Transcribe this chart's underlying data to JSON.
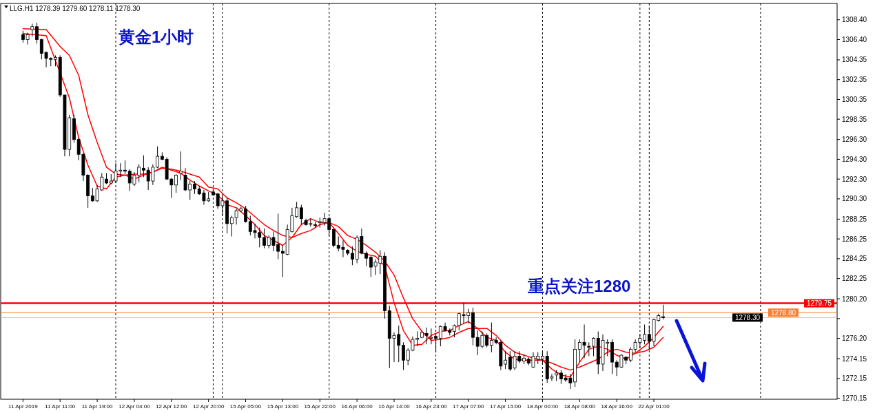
{
  "chart_data": {
    "type": "candlestick",
    "annotations": [
      "LLG.H1  1278.39 1279.60 1278.11 1278.30",
      "黄金1小时",
      "重点关注1280"
    ],
    "categories": [
      "11 Apr 2019",
      null,
      null,
      null,
      null,
      null,
      null,
      null,
      "11 Apr 11:00",
      null,
      null,
      null,
      null,
      null,
      null,
      null,
      "11 Apr 19:00",
      null,
      null,
      null,
      null,
      null,
      null,
      null,
      "12 Apr 04:00",
      null,
      null,
      null,
      null,
      null,
      null,
      null,
      "12 Apr 12:00",
      null,
      null,
      null,
      null,
      null,
      null,
      null,
      "12 Apr 20:00",
      null,
      null,
      null,
      null,
      null,
      null,
      null,
      "15 Apr 05:00",
      null,
      null,
      null,
      null,
      null,
      null,
      null,
      "15 Apr 13:00",
      null,
      null,
      null,
      null,
      null,
      null,
      null,
      "15 Apr 22:00",
      null,
      null,
      null,
      null,
      null,
      null,
      null,
      "16 Apr 06:00",
      null,
      null,
      null,
      null,
      null,
      null,
      null,
      "16 Apr 14:00",
      null,
      null,
      null,
      null,
      null,
      null,
      null,
      "16 Apr 23:00",
      null,
      null,
      null,
      null,
      null,
      null,
      null,
      "17 Apr 07:00",
      null,
      null,
      null,
      null,
      null,
      null,
      null,
      "17 Apr 15:00",
      null,
      null,
      null,
      null,
      null,
      null,
      null,
      "18 Apr 00:00",
      null,
      null,
      null,
      null,
      null,
      null,
      null,
      "18 Apr 08:00",
      null,
      null,
      null,
      null,
      null,
      null,
      null,
      "18 Apr 16:00",
      null,
      null,
      null,
      null,
      null,
      null,
      null,
      "22 Apr 01:00",
      null,
      null,
      null,
      null,
      null,
      null,
      null,
      null,
      null,
      null,
      null,
      null,
      null,
      null,
      null,
      null,
      null,
      null,
      null,
      null,
      null,
      null,
      null,
      null,
      null,
      null,
      null,
      null,
      null,
      null,
      null,
      null,
      null,
      null,
      null,
      null,
      null,
      null,
      null
    ],
    "ohlc": [
      [
        1306.9,
        1307.3,
        1306.1,
        1306.4
      ],
      [
        1306.4,
        1307.1,
        1305.9,
        1306.9
      ],
      [
        1307.4,
        1308.0,
        1306.7,
        1307.7
      ],
      [
        1307.7,
        1308.1,
        1306.0,
        1306.4
      ],
      [
        1306.4,
        1306.5,
        1304.4,
        1305.0
      ],
      [
        1305.1,
        1305.2,
        1303.6,
        1304.5
      ],
      [
        1304.5,
        1304.6,
        1303.7,
        1304.4
      ],
      [
        1304.4,
        1304.8,
        1303.7,
        1304.6
      ],
      [
        1304.6,
        1304.8,
        1300.6,
        1300.8
      ],
      [
        1300.8,
        1300.8,
        1294.6,
        1295.3
      ],
      [
        1295.3,
        1298.8,
        1294.6,
        1298.5
      ],
      [
        1298.4,
        1298.8,
        1296.0,
        1296.3
      ],
      [
        1296.3,
        1296.5,
        1294.2,
        1294.8
      ],
      [
        1294.8,
        1294.9,
        1292.1,
        1292.7
      ],
      [
        1292.7,
        1292.8,
        1289.4,
        1290.6
      ],
      [
        1290.6,
        1291.4,
        1290.0,
        1290.1
      ],
      [
        1290.1,
        1291.7,
        1290.0,
        1291.3
      ],
      [
        1291.2,
        1292.9,
        1291.1,
        1292.5
      ],
      [
        1292.3,
        1292.9,
        1291.8,
        1291.9
      ],
      [
        1291.9,
        1292.8,
        1291.8,
        1292.1
      ],
      [
        1292.1,
        1293.9,
        1291.9,
        1293.1
      ],
      [
        1293.1,
        1293.9,
        1292.5,
        1293.2
      ],
      [
        1293.2,
        1294.2,
        1292.8,
        1293.1
      ],
      [
        1293.1,
        1293.3,
        1291.1,
        1291.9
      ],
      [
        1291.8,
        1293.0,
        1291.6,
        1292.7
      ],
      [
        1292.7,
        1293.8,
        1292.0,
        1293.5
      ],
      [
        1293.4,
        1294.7,
        1292.5,
        1293.2
      ],
      [
        1293.2,
        1293.5,
        1291.2,
        1292.1
      ],
      [
        1292.1,
        1293.8,
        1291.7,
        1293.5
      ],
      [
        1293.5,
        1295.6,
        1293.4,
        1294.6
      ],
      [
        1294.6,
        1295.0,
        1294.2,
        1294.3
      ],
      [
        1294.3,
        1294.5,
        1292.2,
        1292.3
      ],
      [
        1292.3,
        1292.4,
        1290.4,
        1291.7
      ],
      [
        1291.7,
        1292.8,
        1290.9,
        1292.7
      ],
      [
        1292.9,
        1295.1,
        1292.2,
        1293.1
      ],
      [
        1292.7,
        1293.4,
        1291.1,
        1291.2
      ],
      [
        1291.2,
        1292.1,
        1290.2,
        1291.8
      ],
      [
        1291.8,
        1292.1,
        1290.8,
        1291.3
      ],
      [
        1291.3,
        1291.6,
        1290.7,
        1290.8
      ],
      [
        1290.9,
        1291.2,
        1289.7,
        1290.1
      ],
      [
        1290.1,
        1291.0,
        1290.0,
        1290.3
      ],
      [
        1291.0,
        1291.3,
        1290.6,
        1290.7
      ],
      [
        1290.8,
        1290.9,
        1289.3,
        1289.6
      ],
      [
        1289.6,
        1290.7,
        1288.6,
        1290.1
      ],
      [
        1290.1,
        1290.4,
        1286.8,
        1287.8
      ],
      [
        1287.8,
        1288.6,
        1286.5,
        1288.4
      ],
      [
        1288.4,
        1289.3,
        1287.7,
        1289.1
      ],
      [
        1289.1,
        1289.5,
        1289.0,
        1289.3
      ],
      [
        1289.3,
        1289.6,
        1287.9,
        1288.0
      ],
      [
        1288.0,
        1288.6,
        1286.6,
        1287.0
      ],
      [
        1287.1,
        1287.8,
        1286.3,
        1286.9
      ],
      [
        1286.9,
        1287.4,
        1285.4,
        1286.4
      ],
      [
        1286.4,
        1287.3,
        1285.3,
        1285.6
      ],
      [
        1285.6,
        1286.6,
        1285.3,
        1286.4
      ],
      [
        1286.4,
        1287.0,
        1285.0,
        1285.6
      ],
      [
        1285.7,
        1288.8,
        1284.2,
        1285.0
      ],
      [
        1285.0,
        1285.6,
        1282.4,
        1284.8
      ],
      [
        1284.7,
        1287.7,
        1284.6,
        1287.2
      ],
      [
        1287.0,
        1289.4,
        1286.9,
        1288.6
      ],
      [
        1288.5,
        1290.0,
        1288.4,
        1289.4
      ],
      [
        1289.4,
        1289.7,
        1287.7,
        1288.3
      ],
      [
        1288.1,
        1288.3,
        1287.6,
        1287.7
      ],
      [
        1287.8,
        1288.3,
        1287.5,
        1287.8
      ],
      [
        1287.7,
        1288.0,
        1287.4,
        1287.6
      ],
      [
        1287.9,
        1288.4,
        1287.4,
        1288.0
      ],
      [
        1287.9,
        1288.9,
        1287.6,
        1288.3
      ],
      [
        1288.3,
        1288.5,
        1286.5,
        1287.2
      ],
      [
        1287.2,
        1287.4,
        1285.4,
        1285.6
      ],
      [
        1285.6,
        1286.5,
        1285.0,
        1285.3
      ],
      [
        1285.4,
        1286.1,
        1284.4,
        1285.2
      ],
      [
        1285.1,
        1285.2,
        1284.6,
        1284.8
      ],
      [
        1284.8,
        1285.5,
        1283.6,
        1284.2
      ],
      [
        1284.2,
        1286.6,
        1283.8,
        1286.4
      ],
      [
        1286.5,
        1287.3,
        1284.7,
        1284.8
      ],
      [
        1284.8,
        1285.0,
        1283.5,
        1284.3
      ],
      [
        1284.4,
        1284.5,
        1282.4,
        1283.4
      ],
      [
        1283.5,
        1284.2,
        1282.6,
        1283.9
      ],
      [
        1283.8,
        1285.1,
        1282.7,
        1284.5
      ],
      [
        1284.5,
        1284.9,
        1278.2,
        1279.0
      ],
      [
        1279.0,
        1279.5,
        1273.2,
        1276.2
      ],
      [
        1276.2,
        1276.8,
        1273.8,
        1276.5
      ],
      [
        1276.6,
        1277.5,
        1273.8,
        1275.5
      ],
      [
        1275.5,
        1275.8,
        1273.0,
        1274.0
      ],
      [
        1274.0,
        1275.2,
        1273.5,
        1275.0
      ],
      [
        1275.0,
        1276.4,
        1274.9,
        1276.1
      ],
      [
        1276.1,
        1276.9,
        1275.4,
        1276.2
      ],
      [
        1276.3,
        1277.0,
        1276.2,
        1276.8
      ],
      [
        1276.7,
        1277.3,
        1275.6,
        1276.5
      ],
      [
        1276.2,
        1277.2,
        1275.6,
        1276.3
      ],
      [
        1276.4,
        1276.5,
        1274.8,
        1276.2
      ],
      [
        1276.2,
        1277.5,
        1275.4,
        1277.4
      ],
      [
        1277.4,
        1277.8,
        1276.9,
        1277.0
      ],
      [
        1277.0,
        1277.2,
        1276.5,
        1276.8
      ],
      [
        1276.9,
        1277.6,
        1276.3,
        1277.5
      ],
      [
        1277.5,
        1278.8,
        1277.0,
        1278.7
      ],
      [
        1278.6,
        1279.8,
        1277.7,
        1278.5
      ],
      [
        1278.5,
        1279.2,
        1277.7,
        1278.8
      ],
      [
        1278.8,
        1279.3,
        1275.5,
        1276.3
      ],
      [
        1276.3,
        1277.0,
        1274.5,
        1275.4
      ],
      [
        1275.4,
        1276.9,
        1275.2,
        1276.5
      ],
      [
        1276.5,
        1276.7,
        1275.3,
        1275.5
      ],
      [
        1275.5,
        1277.8,
        1274.8,
        1276.0
      ],
      [
        1276.0,
        1276.3,
        1275.6,
        1275.8
      ],
      [
        1275.8,
        1276.0,
        1273.0,
        1273.4
      ],
      [
        1273.6,
        1274.9,
        1273.1,
        1274.0
      ],
      [
        1274.3,
        1274.9,
        1272.9,
        1273.1
      ],
      [
        1273.2,
        1274.9,
        1273.0,
        1274.4
      ],
      [
        1274.4,
        1274.9,
        1273.7,
        1273.9
      ],
      [
        1273.9,
        1274.6,
        1273.6,
        1274.2
      ],
      [
        1274.1,
        1274.3,
        1273.5,
        1273.7
      ],
      [
        1273.3,
        1274.8,
        1273.2,
        1274.4
      ],
      [
        1274.1,
        1274.8,
        1273.6,
        1274.4
      ],
      [
        1274.1,
        1274.9,
        1273.7,
        1274.4
      ],
      [
        1274.4,
        1274.9,
        1271.7,
        1272.1
      ],
      [
        1272.2,
        1272.6,
        1271.9,
        1272.3
      ],
      [
        1272.5,
        1273.0,
        1271.9,
        1272.7
      ],
      [
        1272.7,
        1273.0,
        1271.6,
        1272.1
      ],
      [
        1272.2,
        1272.6,
        1271.8,
        1272.0
      ],
      [
        1272.2,
        1272.6,
        1271.1,
        1271.7
      ],
      [
        1271.8,
        1276.1,
        1271.3,
        1275.1
      ],
      [
        1275.1,
        1276.1,
        1273.8,
        1275.8
      ],
      [
        1275.8,
        1277.6,
        1274.2,
        1275.5
      ],
      [
        1275.4,
        1275.8,
        1274.4,
        1275.3
      ],
      [
        1275.4,
        1276.3,
        1274.4,
        1276.2
      ],
      [
        1276.2,
        1276.9,
        1272.6,
        1273.6
      ],
      [
        1273.6,
        1276.6,
        1272.9,
        1276.0
      ],
      [
        1275.7,
        1276.1,
        1274.4,
        1275.8
      ],
      [
        1275.8,
        1276.1,
        1272.6,
        1273.8
      ],
      [
        1273.8,
        1274.0,
        1272.4,
        1273.3
      ],
      [
        1273.3,
        1274.6,
        1273.2,
        1274.5
      ],
      [
        1274.3,
        1274.4,
        1273.6,
        1274.0
      ],
      [
        1274.0,
        1275.3,
        1273.8,
        1275.1
      ],
      [
        1275.1,
        1276.1,
        1274.8,
        1275.8
      ],
      [
        1275.8,
        1276.6,
        1275.2,
        1276.2
      ],
      [
        1276.0,
        1277.6,
        1275.6,
        1276.6
      ],
      [
        1276.6,
        1277.5,
        1275.1,
        1275.9
      ],
      [
        1275.9,
        1278.2,
        1275.4,
        1278.1
      ],
      [
        1278.0,
        1278.7,
        1277.9,
        1278.5
      ],
      [
        1278.39,
        1279.6,
        1278.11,
        1278.3
      ],
      null,
      null,
      null,
      null,
      null,
      null,
      null,
      null,
      null,
      null,
      null,
      null,
      null,
      null,
      null,
      null,
      null,
      null,
      null,
      null,
      null,
      null,
      null,
      null,
      null,
      null,
      null,
      null,
      null,
      null,
      null,
      null,
      null,
      null,
      null,
      null,
      null
    ],
    "series": [
      {
        "type": "line",
        "color": "#ff0000",
        "values": [
          1307.0,
          null,
          null,
          null,
          null,
          1306.8,
          null,
          null,
          null,
          null,
          1300.5,
          null,
          1296.5,
          null,
          1293.7,
          null,
          1291.6,
          null,
          1291.3,
          null,
          1292.5,
          null,
          1292.7,
          null,
          1292.8,
          null,
          1292.8,
          null,
          1293.0,
          null,
          1293.5,
          null,
          1293.2,
          null,
          1292.9,
          null,
          1292.2,
          null,
          1291.6,
          null,
          1291.1,
          null,
          1290.7,
          null,
          1289.7,
          null,
          1289.4,
          null,
          1288.6,
          null,
          1287.7,
          null,
          1286.6,
          null,
          1286.1,
          null,
          1285.6,
          null,
          1286.4,
          null,
          1287.7,
          null,
          1288.3,
          null,
          1287.9,
          null,
          1287.9,
          null,
          1286.8,
          null,
          1285.6,
          null,
          1285.0,
          null,
          1284.7,
          null,
          1284.5,
          null,
          1283.5,
          null,
          1279.8,
          null,
          1277.0,
          null,
          1275.5,
          null,
          1275.6,
          null,
          1276.5,
          null,
          1276.9,
          null,
          1277.0,
          null,
          1277.5,
          null,
          1277.9,
          null,
          1277.2,
          null,
          1276.3,
          null,
          1276.0,
          null,
          1274.8,
          null,
          1274.1,
          null,
          1274.0,
          null,
          1274.0,
          null,
          1274.0,
          null,
          1273.1,
          null,
          1272.5,
          null,
          1272.3,
          null,
          1273.8,
          null,
          1275.1,
          null,
          1275.4,
          null,
          1275.1,
          null,
          1274.5,
          null,
          1274.1,
          null,
          1274.7,
          null,
          1275.4,
          null,
          1276.3,
          null,
          1277.4,
          null,
          null,
          null,
          null,
          null,
          null,
          null,
          null,
          null,
          null,
          null,
          null,
          null,
          null,
          null,
          null,
          null,
          null,
          null,
          null,
          null,
          null,
          null,
          null,
          null,
          null,
          null,
          null,
          null,
          null,
          null,
          null,
          null,
          null,
          null,
          null,
          null
        ]
      },
      {
        "type": "line",
        "color": "#ff0000",
        "values": [
          1307.5,
          null,
          null,
          null,
          null,
          1307.4,
          null,
          null,
          1305.7,
          null,
          1304.8,
          null,
          1302.8,
          null,
          1298.8,
          null,
          1296.0,
          null,
          1293.5,
          null,
          1292.8,
          null,
          1292.7,
          null,
          1292.3,
          null,
          1292.7,
          null,
          1293.0,
          null,
          1293.4,
          null,
          1293.3,
          null,
          1293.1,
          null,
          1292.8,
          null,
          1292.5,
          null,
          1291.5,
          null,
          1291.3,
          null,
          1290.4,
          null,
          1289.9,
          null,
          1289.3,
          null,
          1288.5,
          null,
          1287.7,
          null,
          1287.1,
          null,
          1286.6,
          null,
          1286.4,
          null,
          1286.8,
          null,
          1287.1,
          null,
          1287.7,
          null,
          1287.9,
          null,
          1287.5,
          null,
          1286.6,
          null,
          1286.2,
          null,
          1285.6,
          null,
          1284.9,
          null,
          1284.0,
          null,
          1282.6,
          null,
          1280.3,
          null,
          1278.2,
          null,
          1276.9,
          null,
          1276.0,
          null,
          1276.1,
          null,
          1276.3,
          null,
          1276.8,
          null,
          1277.2,
          null,
          1277.2,
          null,
          1277.2,
          null,
          1276.5,
          null,
          1275.5,
          null,
          1274.8,
          null,
          1274.5,
          null,
          1274.2,
          null,
          1274.0,
          null,
          1273.7,
          null,
          1273.3,
          null,
          1273.0,
          null,
          1273.3,
          null,
          1273.7,
          null,
          1274.1,
          null,
          1274.8,
          null,
          1275.1,
          null,
          1274.8,
          null,
          1274.7,
          null,
          1274.9,
          null,
          1275.3,
          null,
          1276.3,
          null,
          null,
          null,
          null,
          null,
          null,
          null,
          null,
          null,
          null,
          null,
          null,
          null,
          null,
          null,
          null,
          null,
          null,
          null,
          null,
          null,
          null,
          null,
          null,
          null,
          null,
          null,
          null,
          null,
          null,
          null,
          null,
          null,
          null,
          null,
          null,
          null
        ]
      }
    ],
    "ref_lines": [
      {
        "axis": "y",
        "value": 1279.75,
        "label": "1279.75",
        "color": "#ff0000",
        "line_style": "solid"
      },
      {
        "axis": "y",
        "value": 1278.8,
        "label": "1278.80",
        "color": "#ff7f2a",
        "line_style": "solid"
      },
      {
        "axis": "y",
        "value": 1278.3,
        "label": "1278.30",
        "color": "#c0c0c0",
        "line_style": "solid"
      }
    ],
    "ylim": [
      1270.05,
      1310.05
    ],
    "yticks": [
      {
        "value": 1270.15,
        "label": "1270.15"
      },
      {
        "value": 1272.15,
        "label": "1272.15"
      },
      {
        "value": 1274.15,
        "label": "1274.15"
      },
      {
        "value": 1276.2,
        "label": "1276.20"
      },
      {
        "value": 1278.2,
        "label": null
      },
      {
        "value": 1280.2,
        "label": "1280.20"
      },
      {
        "value": 1282.25,
        "label": "1282.25"
      },
      {
        "value": 1284.25,
        "label": "1284.25"
      },
      {
        "value": 1286.25,
        "label": "1286.25"
      },
      {
        "value": 1288.25,
        "label": "1288.25"
      },
      {
        "value": 1290.3,
        "label": "1290.30"
      },
      {
        "value": 1292.3,
        "label": "1292.30"
      },
      {
        "value": 1294.3,
        "label": "1294.30"
      },
      {
        "value": 1296.3,
        "label": "1296.30"
      },
      {
        "value": 1298.35,
        "label": "1298.35"
      },
      {
        "value": 1300.35,
        "label": "1300.35"
      },
      {
        "value": 1302.35,
        "label": "1302.35"
      },
      {
        "value": 1304.35,
        "label": "1304.35"
      },
      {
        "value": 1306.4,
        "label": "1306.40"
      },
      {
        "value": 1308.4,
        "label": "1308.40"
      }
    ]
  }
}
